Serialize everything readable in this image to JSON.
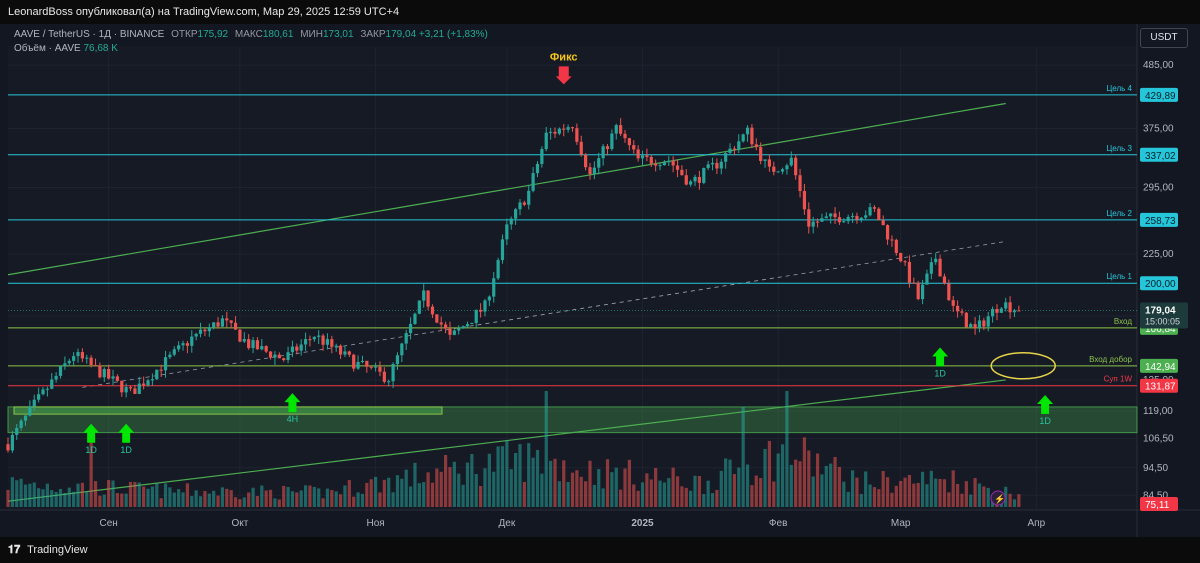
{
  "header": {
    "published_text": "LeonardBoss опубликовал(а) на TradingView.com, Мар 29, 2025 12:59 UTC+4"
  },
  "legend": {
    "symbol": "AAVE / TetherUS · 1Д · BINANCE",
    "open_label": "ОТКР",
    "open": "175,92",
    "high_label": "МАКС",
    "high": "180,61",
    "low_label": "МИН",
    "low": "173,01",
    "close_label": "ЗАКР",
    "close": "179,04",
    "change": "+3,21 (+1,83%)",
    "volume_label": "Объём · AAVE",
    "volume": "76,68 K"
  },
  "currency_button": "USDT",
  "footer": {
    "brand": "TradingView"
  },
  "colors": {
    "up": "#26a69a",
    "down": "#ef5350",
    "level": "#26c6da",
    "channel": "#4caf50",
    "support": "#f23645",
    "zone": "#4caf50",
    "arrow": "#00e600",
    "ellipse": "#e6d44a",
    "volume_badge": "#f23645"
  },
  "chart_data": {
    "type": "candlestick",
    "symbol": "AAVE/USDT",
    "timeframe": "1D",
    "scale": "log",
    "ylim": [
      79.6,
      520
    ],
    "x_start": "2024-08-09",
    "x_end": "2025-04-24",
    "x_ticks": [
      {
        "date": "2024-09-01",
        "label": "Сен"
      },
      {
        "date": "2024-10-01",
        "label": "Окт"
      },
      {
        "date": "2024-11-01",
        "label": "Ноя"
      },
      {
        "date": "2024-12-01",
        "label": "Дек"
      },
      {
        "date": "2025-01-01",
        "label": "2025"
      },
      {
        "date": "2025-02-01",
        "label": "Фев"
      },
      {
        "date": "2025-03-01",
        "label": "Мар"
      },
      {
        "date": "2025-04-01",
        "label": "Апр"
      }
    ],
    "y_ticks": [
      "485,00",
      "375,00",
      "295,00",
      "225,00",
      "175,00",
      "135,00",
      "119,00",
      "106,50",
      "94,50",
      "84,50"
    ],
    "levels": [
      {
        "label": "Цель 4",
        "value": 429.89,
        "badge": "429,89"
      },
      {
        "label": "Цель 3",
        "value": 337.02,
        "badge": "337,02"
      },
      {
        "label": "Цель 2",
        "value": 258.73,
        "badge": "258,73"
      },
      {
        "label": "Цель 1",
        "value": 200.0,
        "badge": "200,00"
      },
      {
        "label": "Вход",
        "value": 166.84,
        "badge": "166,84"
      },
      {
        "label": "Вход добор",
        "value": 142.94,
        "badge": "142,94"
      },
      {
        "label": "Суп 1W",
        "value": 131.87,
        "badge": "131,87"
      }
    ],
    "last_price": {
      "value": 179.04,
      "badge": "179,04",
      "countdown": "15:00:05"
    },
    "volume_badge": "75,11",
    "support_zone": {
      "from": 109,
      "to": 121,
      "inner_from": 117.5,
      "inner_to": 121
    },
    "channel": [
      {
        "from": [
          "2024-08-09",
          207
        ],
        "to": [
          "2025-03-25",
          415
        ]
      },
      {
        "from": [
          "2024-08-09",
          82.5
        ],
        "to": [
          "2025-03-25",
          135
        ]
      }
    ],
    "trend_dashed": {
      "from": [
        "2024-08-26",
        131
      ],
      "to": [
        "2025-03-25",
        237
      ]
    },
    "annotations": [
      {
        "text": "Фикс",
        "date": "2024-12-14",
        "value": 445,
        "type": "arrow-down"
      },
      {
        "text": "1D",
        "date": "2024-08-28",
        "value": 113,
        "type": "arrow-up"
      },
      {
        "text": "1D",
        "date": "2024-09-05",
        "value": 113,
        "type": "arrow-up"
      },
      {
        "text": "4H",
        "date": "2024-10-13",
        "value": 128,
        "type": "arrow-up"
      },
      {
        "text": "1D",
        "date": "2025-03-10",
        "value": 154,
        "type": "arrow-up"
      },
      {
        "text": "1D",
        "date": "2025-04-03",
        "value": 127,
        "type": "arrow-up"
      }
    ],
    "ellipse": {
      "date": "2025-03-29",
      "value": 143
    },
    "path": [
      [
        "2024-08-09",
        104
      ],
      [
        "2024-08-15",
        122
      ],
      [
        "2024-08-24",
        150
      ],
      [
        "2024-09-06",
        128
      ],
      [
        "2024-09-13",
        143
      ],
      [
        "2024-09-20",
        160
      ],
      [
        "2024-09-27",
        172
      ],
      [
        "2024-10-03",
        156
      ],
      [
        "2024-10-11",
        147
      ],
      [
        "2024-10-18",
        162
      ],
      [
        "2024-10-27",
        145
      ],
      [
        "2024-11-04",
        136
      ],
      [
        "2024-11-12",
        190
      ],
      [
        "2024-11-18",
        160
      ],
      [
        "2024-11-26",
        182
      ],
      [
        "2024-12-01",
        250
      ],
      [
        "2024-12-06",
        290
      ],
      [
        "2024-12-10",
        365
      ],
      [
        "2024-12-16",
        382
      ],
      [
        "2024-12-20",
        310
      ],
      [
        "2024-12-26",
        375
      ],
      [
        "2024-12-31",
        330
      ],
      [
        "2025-01-07",
        330
      ],
      [
        "2025-01-12",
        300
      ],
      [
        "2025-01-18",
        325
      ],
      [
        "2025-01-25",
        370
      ],
      [
        "2025-01-30",
        315
      ],
      [
        "2025-02-04",
        330
      ],
      [
        "2025-02-08",
        255
      ],
      [
        "2025-02-15",
        262
      ],
      [
        "2025-02-23",
        268
      ],
      [
        "2025-03-01",
        222
      ],
      [
        "2025-03-05",
        188
      ],
      [
        "2025-03-09",
        222
      ],
      [
        "2025-03-13",
        180
      ],
      [
        "2025-03-18",
        165
      ],
      [
        "2025-03-24",
        185
      ],
      [
        "2025-03-28",
        179
      ]
    ],
    "volume_path": [
      [
        "2024-08-09",
        0.3
      ],
      [
        "2024-09-15",
        0.2
      ],
      [
        "2024-10-20",
        0.18
      ],
      [
        "2024-11-12",
        0.4
      ],
      [
        "2024-12-05",
        0.6
      ],
      [
        "2024-12-20",
        0.45
      ],
      [
        "2025-01-15",
        0.3
      ],
      [
        "2025-02-03",
        0.7
      ],
      [
        "2025-02-20",
        0.3
      ],
      [
        "2025-03-12",
        0.35
      ],
      [
        "2025-03-28",
        0.15
      ]
    ],
    "volume_spikes": [
      {
        "date": "2024-08-28",
        "value": 0.95,
        "dir": "up"
      },
      {
        "date": "2024-12-10",
        "value": 1.45,
        "dir": "up"
      },
      {
        "date": "2025-01-24",
        "value": 1.25,
        "dir": "up"
      },
      {
        "date": "2025-02-03",
        "value": 1.45,
        "dir": "up"
      }
    ]
  }
}
